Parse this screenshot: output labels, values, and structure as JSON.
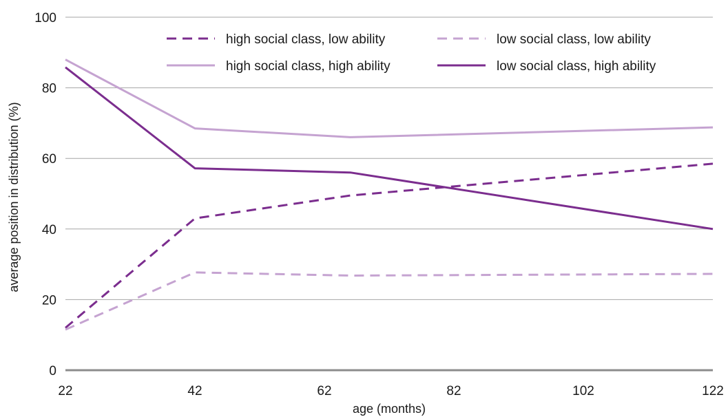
{
  "chart_data": {
    "type": "line",
    "xlabel": "age (months)",
    "ylabel": "average position in distribution (%)",
    "xlim": [
      22,
      122
    ],
    "ylim": [
      0,
      100
    ],
    "x_ticks": [
      22,
      42,
      62,
      82,
      102,
      122
    ],
    "y_ticks": [
      0,
      20,
      40,
      60,
      80,
      100
    ],
    "grid": "horizontal",
    "legend_position": "top",
    "series": [
      {
        "name": "high social class, low ability",
        "color": "#7b2d8e",
        "style": "dashed",
        "points": [
          [
            22,
            12
          ],
          [
            42,
            43
          ],
          [
            66,
            49.5
          ],
          [
            122,
            58.5
          ]
        ]
      },
      {
        "name": "low social class, low ability",
        "color": "#c5a3d1",
        "style": "dashed",
        "points": [
          [
            22,
            11.5
          ],
          [
            42,
            27.7
          ],
          [
            66,
            26.8
          ],
          [
            122,
            27.3
          ]
        ]
      },
      {
        "name": "high social class, high ability",
        "color": "#c5a3d1",
        "style": "solid",
        "points": [
          [
            22,
            88
          ],
          [
            42,
            68.5
          ],
          [
            66,
            66
          ],
          [
            122,
            68.8
          ]
        ]
      },
      {
        "name": "low social class, high ability",
        "color": "#7b2d8e",
        "style": "solid",
        "points": [
          [
            22,
            85.8
          ],
          [
            42,
            57.2
          ],
          [
            66,
            56
          ],
          [
            122,
            40
          ]
        ]
      }
    ]
  }
}
